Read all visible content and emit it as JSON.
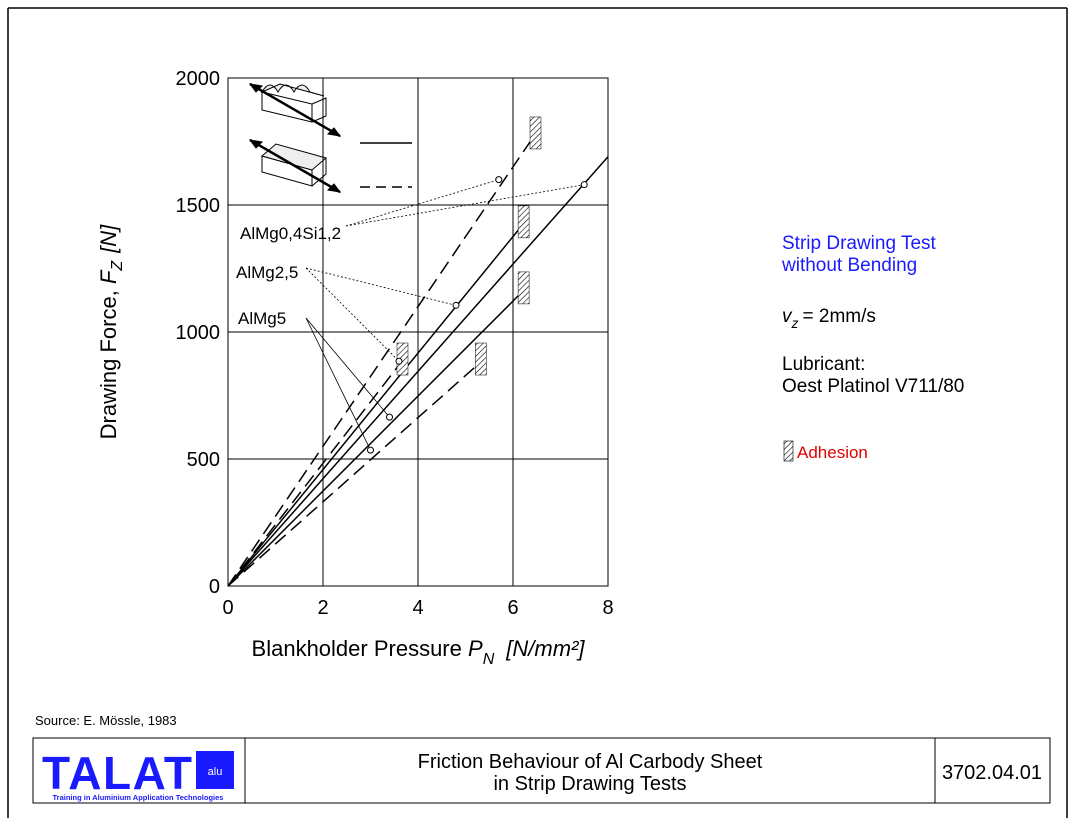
{
  "chart_data": {
    "type": "line",
    "xlabel": {
      "text": "Blankholder Pressure",
      "symbol": "P",
      "subscript": "N",
      "unit": "[N/mm²]"
    },
    "ylabel": {
      "text": "Drawing Force,",
      "symbol": "F",
      "subscript": "Z",
      "unit": "[N]"
    },
    "xlim": [
      0,
      8
    ],
    "xticks": [
      0,
      2,
      4,
      6,
      8
    ],
    "ylim": [
      0,
      2000
    ],
    "yticks": [
      0,
      500,
      1000,
      1500,
      2000
    ],
    "grid": true,
    "color": "#000000",
    "series": [
      {
        "dash": false,
        "adhesion": false,
        "x": [
          0,
          8
        ],
        "values": [
          0,
          1690
        ]
      },
      {
        "dash": true,
        "adhesion": true,
        "x": [
          0,
          6.4
        ],
        "values": [
          0,
          1760
        ]
      },
      {
        "dash": false,
        "adhesion": true,
        "x": [
          0,
          6.15
        ],
        "values": [
          0,
          1410
        ]
      },
      {
        "dash": true,
        "adhesion": true,
        "x": [
          0,
          3.6
        ],
        "values": [
          0,
          870
        ]
      },
      {
        "dash": false,
        "adhesion": true,
        "x": [
          0,
          6.15
        ],
        "values": [
          0,
          1150
        ]
      },
      {
        "dash": true,
        "adhesion": true,
        "x": [
          0,
          5.25
        ],
        "values": [
          0,
          870
        ]
      }
    ],
    "annotations": [
      {
        "text": "AlMg0,4Si1,2",
        "x": [
          7.5,
          5.7
        ],
        "values": [
          1580,
          1600
        ]
      },
      {
        "text": "AlMg2,5",
        "x": [
          4.8,
          3.6
        ],
        "values": [
          1105,
          885
        ]
      },
      {
        "text": "AlMg5",
        "x": [
          3.4,
          3.0
        ],
        "values": [
          665,
          535
        ]
      }
    ]
  },
  "side": {
    "title": [
      "Strip Drawing Test",
      "without Bending"
    ],
    "speed": {
      "symbol": "v",
      "subscript": "z",
      "text": "= 2mm/s"
    },
    "lubricant": [
      "Lubricant:",
      "Oest Platinol V711/80"
    ],
    "adhesion": "Adhesion"
  },
  "footer": {
    "source": "Source: E. Mössle, 1983",
    "logo": "TALAT",
    "logo_badge": "alu",
    "tagline": "Training in Aluminium Application Technologies",
    "title": [
      "Friction Behaviour of Al Carbody Sheet",
      "in Strip Drawing Tests"
    ],
    "code": "3702.04.01"
  }
}
